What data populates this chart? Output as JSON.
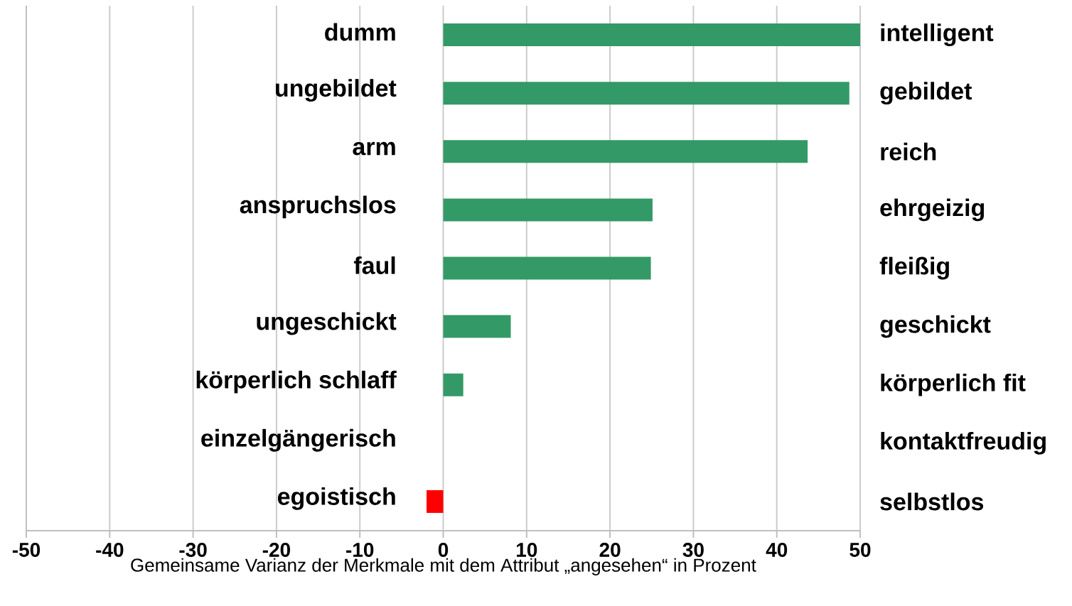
{
  "chart_data": {
    "type": "bar",
    "orientation": "horizontal",
    "categories": [
      "dumm",
      "ungebildet",
      "arm",
      "anspruchslos",
      "faul",
      "ungeschickt",
      "körperlich schlaff",
      "einzelgängerisch",
      "egoistisch"
    ],
    "values": [
      50,
      48.7,
      43.7,
      25.1,
      24.9,
      8.1,
      2.4,
      0,
      -2
    ],
    "colors": [
      "#339966",
      "#339966",
      "#339966",
      "#339966",
      "#339966",
      "#339966",
      "#339966",
      "#339966",
      "#ff0000"
    ],
    "xlim": [
      -50,
      50
    ],
    "xticks": [
      -50,
      -40,
      -30,
      -20,
      -10,
      0,
      10,
      20,
      30,
      40,
      50
    ],
    "xlabel": "Gemeinsame Varianz der Merkmale mit dem Attribut „angesehen“ in Prozent",
    "annotations": [
      "intelligent",
      "gebildet",
      "reich",
      "ehrgeizig",
      "fleißig",
      "geschickt",
      "körperlich fit",
      "kontaktfreudig",
      "selbstlos"
    ],
    "grid": "x"
  }
}
